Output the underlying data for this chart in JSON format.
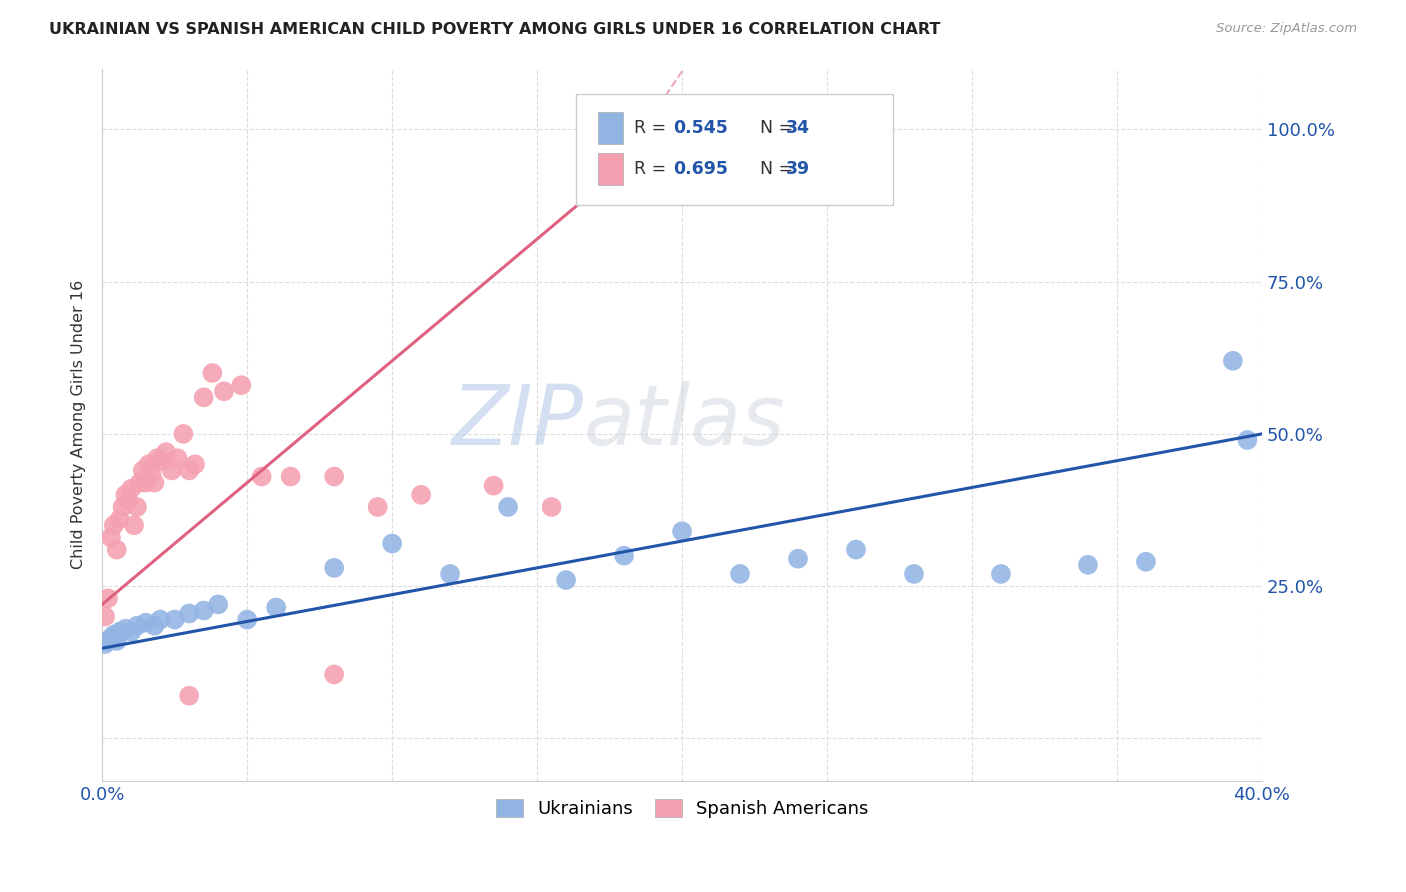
{
  "title": "UKRAINIAN VS SPANISH AMERICAN CHILD POVERTY AMONG GIRLS UNDER 16 CORRELATION CHART",
  "source": "Source: ZipAtlas.com",
  "ylabel": "Child Poverty Among Girls Under 16",
  "xlim": [
    0.0,
    0.4
  ],
  "ylim": [
    -0.07,
    1.1
  ],
  "ukr_color": "#92b4e3",
  "spa_color": "#f4a0b0",
  "ukr_line_color": "#2255aa",
  "spa_line_color": "#e06080",
  "watermark_zip": "ZIP",
  "watermark_atlas": "atlas",
  "background_color": "#ffffff",
  "grid_color": "#dddddd",
  "ukr_x": [
    0.001,
    0.002,
    0.003,
    0.004,
    0.005,
    0.006,
    0.008,
    0.01,
    0.012,
    0.015,
    0.018,
    0.02,
    0.025,
    0.03,
    0.035,
    0.04,
    0.05,
    0.06,
    0.08,
    0.1,
    0.12,
    0.14,
    0.16,
    0.18,
    0.2,
    0.22,
    0.24,
    0.26,
    0.28,
    0.31,
    0.34,
    0.36,
    0.39,
    0.395
  ],
  "ukr_y": [
    0.155,
    0.16,
    0.165,
    0.17,
    0.16,
    0.175,
    0.18,
    0.175,
    0.185,
    0.19,
    0.185,
    0.195,
    0.195,
    0.205,
    0.21,
    0.22,
    0.195,
    0.215,
    0.28,
    0.32,
    0.27,
    0.38,
    0.26,
    0.3,
    0.34,
    0.27,
    0.295,
    0.31,
    0.27,
    0.27,
    0.285,
    0.29,
    0.62,
    0.49
  ],
  "spa_x": [
    0.001,
    0.002,
    0.003,
    0.004,
    0.005,
    0.006,
    0.007,
    0.008,
    0.009,
    0.01,
    0.011,
    0.012,
    0.013,
    0.014,
    0.015,
    0.016,
    0.017,
    0.018,
    0.019,
    0.02,
    0.022,
    0.024,
    0.026,
    0.028,
    0.03,
    0.032,
    0.035,
    0.038,
    0.042,
    0.048,
    0.055,
    0.065,
    0.08,
    0.095,
    0.11,
    0.135,
    0.155,
    0.08,
    0.03
  ],
  "spa_y": [
    0.2,
    0.23,
    0.33,
    0.35,
    0.31,
    0.36,
    0.38,
    0.4,
    0.39,
    0.41,
    0.35,
    0.38,
    0.42,
    0.44,
    0.42,
    0.45,
    0.435,
    0.42,
    0.46,
    0.455,
    0.47,
    0.44,
    0.46,
    0.5,
    0.44,
    0.45,
    0.56,
    0.6,
    0.57,
    0.58,
    0.43,
    0.43,
    0.43,
    0.38,
    0.4,
    0.415,
    0.38,
    0.105,
    0.07
  ]
}
